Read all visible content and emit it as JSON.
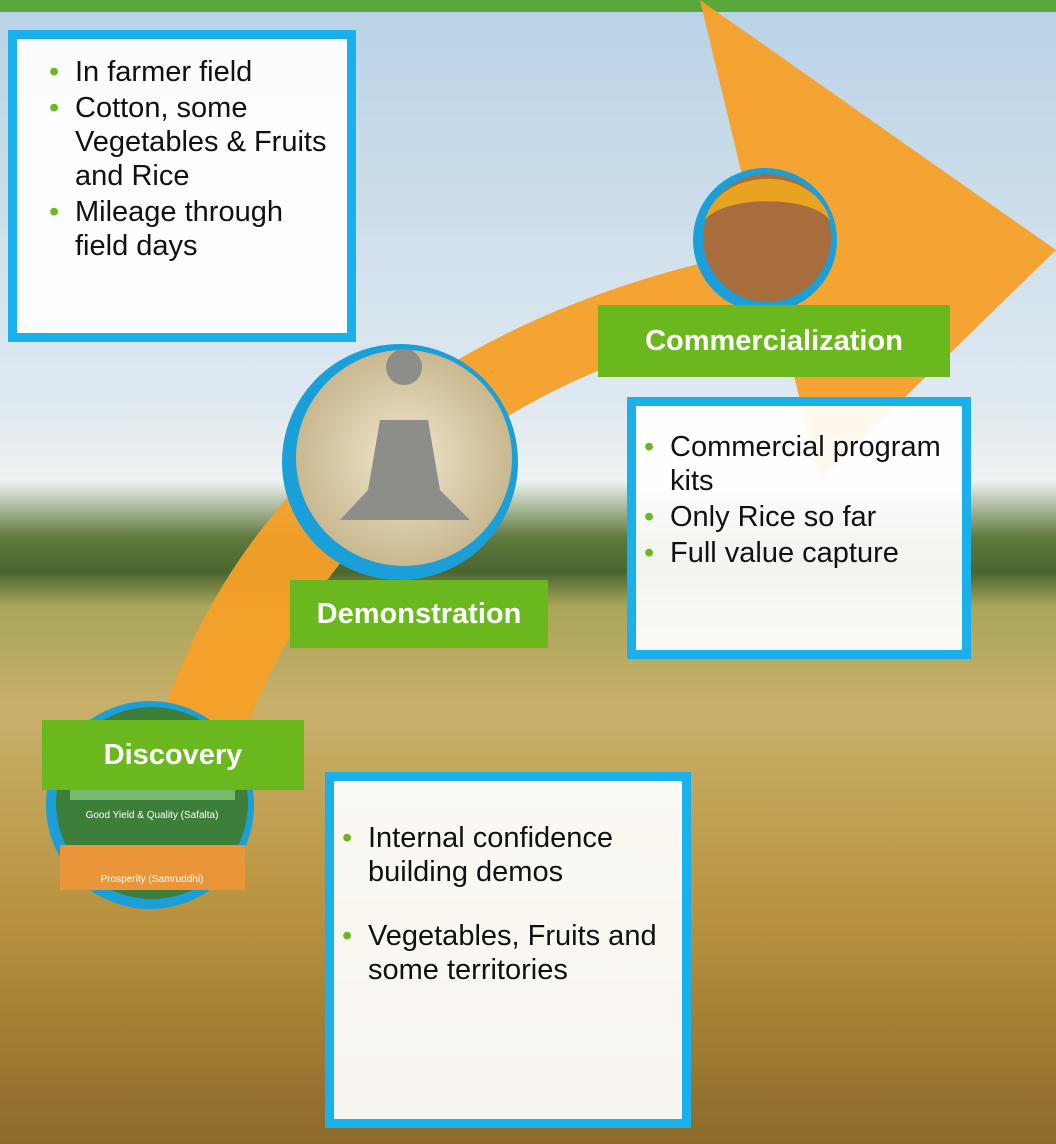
{
  "stages": [
    {
      "label": "Discovery",
      "bullets": [
        "Internal confidence building demos",
        "Vegetables, Fruits and some territories"
      ],
      "image_texts": [
        "Good Yield & Quality (Safalta)",
        "Prosperity (Samruddhi)"
      ]
    },
    {
      "label": "Demonstration",
      "bullets": [
        "In farmer field",
        "Cotton, some Vegetables & Fruits and Rice",
        "Mileage through field days"
      ]
    },
    {
      "label": "Commercialization",
      "bullets": [
        "Commercial program kits",
        "Only Rice so far",
        "Full value capture"
      ]
    }
  ]
}
